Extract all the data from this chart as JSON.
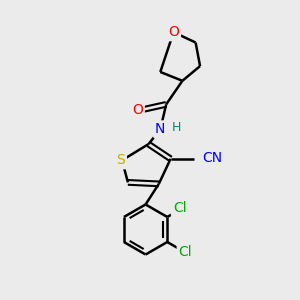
{
  "bg_color": "#ebebeb",
  "atom_colors": {
    "O": "#ff0000",
    "N": "#0000ff",
    "S": "#ccaa00",
    "Cl": "#00aa00",
    "C": "#000000",
    "CN_label": "#0000ff"
  },
  "bond_color": "#000000",
  "bond_lw": 1.8,
  "font_size": 10
}
